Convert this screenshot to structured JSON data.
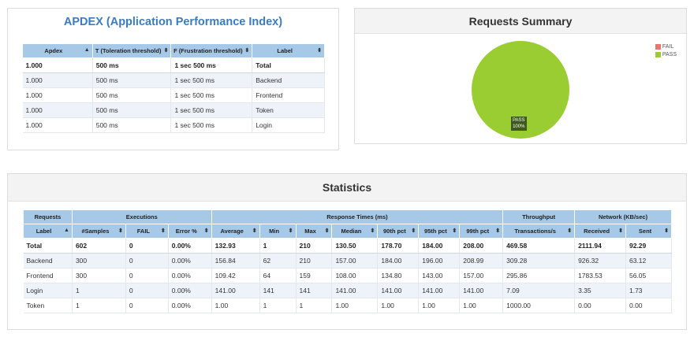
{
  "apdex": {
    "title": "APDEX (Application Performance Index)",
    "columns": [
      "Apdex",
      "T (Toleration threshold)",
      "F (Frustration threshold)",
      "Label"
    ],
    "rows": [
      [
        "1.000",
        "500 ms",
        "1 sec 500 ms",
        "Total"
      ],
      [
        "1.000",
        "500 ms",
        "1 sec 500 ms",
        "Backend"
      ],
      [
        "1.000",
        "500 ms",
        "1 sec 500 ms",
        "Frontend"
      ],
      [
        "1.000",
        "500 ms",
        "1 sec 500 ms",
        "Token"
      ],
      [
        "1.000",
        "500 ms",
        "1 sec 500 ms",
        "Login"
      ]
    ]
  },
  "summary": {
    "title": "Requests Summary",
    "legend": [
      {
        "label": "FAIL",
        "color": "#e8766e"
      },
      {
        "label": "PASS",
        "color": "#9acd32"
      }
    ],
    "slice_label": "PASS",
    "slice_pct": "100%"
  },
  "chart_data": {
    "type": "pie",
    "categories": [
      "FAIL",
      "PASS"
    ],
    "values": [
      0,
      100
    ],
    "colors": [
      "#e8766e",
      "#9acd32"
    ],
    "title": "Requests Summary",
    "legend_position": "top-right"
  },
  "statistics": {
    "title": "Statistics",
    "groups": [
      {
        "label": "Requests",
        "span": 1
      },
      {
        "label": "Executions",
        "span": 3
      },
      {
        "label": "Response Times (ms)",
        "span": 7
      },
      {
        "label": "Throughput",
        "span": 1
      },
      {
        "label": "Network (KB/sec)",
        "span": 2
      }
    ],
    "columns": [
      "Label",
      "#Samples",
      "FAIL",
      "Error %",
      "Average",
      "Min",
      "Max",
      "Median",
      "90th pct",
      "95th pct",
      "99th pct",
      "Transactions/s",
      "Received",
      "Sent"
    ],
    "rows": [
      [
        "Total",
        "602",
        "0",
        "0.00%",
        "132.93",
        "1",
        "210",
        "130.50",
        "178.70",
        "184.00",
        "208.00",
        "469.58",
        "2111.94",
        "92.29"
      ],
      [
        "Backend",
        "300",
        "0",
        "0.00%",
        "156.84",
        "62",
        "210",
        "157.00",
        "184.00",
        "196.00",
        "208.99",
        "309.28",
        "926.32",
        "63.12"
      ],
      [
        "Frontend",
        "300",
        "0",
        "0.00%",
        "109.42",
        "64",
        "159",
        "108.00",
        "134.80",
        "143.00",
        "157.00",
        "295.86",
        "1783.53",
        "56.05"
      ],
      [
        "Login",
        "1",
        "0",
        "0.00%",
        "141.00",
        "141",
        "141",
        "141.00",
        "141.00",
        "141.00",
        "141.00",
        "7.09",
        "3.35",
        "1.73"
      ],
      [
        "Token",
        "1",
        "0",
        "0.00%",
        "1.00",
        "1",
        "1",
        "1.00",
        "1.00",
        "1.00",
        "1.00",
        "1000.00",
        "0.00",
        "0.00"
      ]
    ]
  }
}
